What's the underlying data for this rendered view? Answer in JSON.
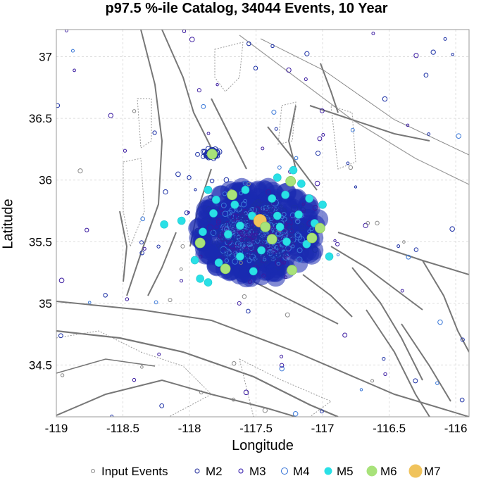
{
  "chart_data": {
    "type": "scatter",
    "title": "p97.5 %-ile Catalog, 34044 Events, 10 Year",
    "xlabel": "Longitude",
    "ylabel": "Latitude",
    "xlim": [
      -119.0,
      -115.9
    ],
    "ylim": [
      34.08,
      37.22
    ],
    "xticks": [
      -119,
      -118.5,
      -118,
      -117.5,
      -117,
      -116.5,
      -116
    ],
    "xtick_labels": [
      "-119",
      "-118.5",
      "-118",
      "-117.5",
      "-117",
      "-116.5",
      "-116"
    ],
    "yticks": [
      34.5,
      35,
      35.5,
      36,
      36.5,
      37
    ],
    "ytick_labels": [
      "34.5",
      "35",
      "35.5",
      "36",
      "36.5",
      "37"
    ],
    "grid": true,
    "legend_position": "bottom",
    "legend": [
      {
        "label": "Input Events",
        "color": "#888888",
        "style": "open-small"
      },
      {
        "label": "M2",
        "color": "#1f2a9a",
        "style": "open"
      },
      {
        "label": "M3",
        "color": "#2a10a8",
        "style": "open"
      },
      {
        "label": "M4",
        "color": "#2f6fd6",
        "style": "open-large"
      },
      {
        "label": "M5",
        "color": "#29e0e6",
        "style": "filled"
      },
      {
        "label": "M6",
        "color": "#a8e27a",
        "style": "filled-large"
      },
      {
        "label": "M7",
        "color": "#f0c35c",
        "style": "filled-xlarge"
      }
    ],
    "cluster": {
      "center_lon": -117.48,
      "center_lat": 35.58,
      "extent_lon": 0.52,
      "extent_lat": 0.4
    },
    "secondary_cluster": {
      "lon": -117.83,
      "lat": 36.21
    },
    "large_events": [
      {
        "mag": "M7",
        "lon": -117.47,
        "lat": 35.67
      },
      {
        "mag": "M6",
        "lon": -117.83,
        "lat": 36.21
      },
      {
        "mag": "M6",
        "lon": -117.68,
        "lat": 35.88
      },
      {
        "mag": "M6",
        "lon": -117.24,
        "lat": 35.99
      },
      {
        "mag": "M6",
        "lon": -117.43,
        "lat": 35.62
      },
      {
        "mag": "M6",
        "lon": -117.38,
        "lat": 35.52
      },
      {
        "mag": "M6",
        "lon": -117.08,
        "lat": 35.53
      },
      {
        "mag": "M6",
        "lon": -117.73,
        "lat": 35.28
      },
      {
        "mag": "M6",
        "lon": -117.92,
        "lat": 35.49
      },
      {
        "mag": "M6",
        "lon": -117.23,
        "lat": 35.27
      },
      {
        "mag": "M6",
        "lon": -117.02,
        "lat": 35.61
      }
    ],
    "m5_events": [
      {
        "lon": -117.86,
        "lat": 35.92
      },
      {
        "lon": -117.8,
        "lat": 35.84
      },
      {
        "lon": -117.66,
        "lat": 35.8
      },
      {
        "lon": -117.58,
        "lat": 35.92
      },
      {
        "lon": -117.34,
        "lat": 36.02
      },
      {
        "lon": -117.16,
        "lat": 35.97
      },
      {
        "lon": -117.28,
        "lat": 35.88
      },
      {
        "lon": -117.53,
        "lat": 35.71
      },
      {
        "lon": -117.62,
        "lat": 35.63
      },
      {
        "lon": -117.34,
        "lat": 35.71
      },
      {
        "lon": -117.18,
        "lat": 35.72
      },
      {
        "lon": -117.06,
        "lat": 35.65
      },
      {
        "lon": -117.12,
        "lat": 35.48
      },
      {
        "lon": -117.27,
        "lat": 35.5
      },
      {
        "lon": -117.46,
        "lat": 35.43
      },
      {
        "lon": -117.62,
        "lat": 35.38
      },
      {
        "lon": -117.78,
        "lat": 35.33
      },
      {
        "lon": -117.86,
        "lat": 35.17
      },
      {
        "lon": -117.9,
        "lat": 35.58
      },
      {
        "lon": -117.96,
        "lat": 35.35
      },
      {
        "lon": -117.52,
        "lat": 35.26
      },
      {
        "lon": -117.32,
        "lat": 35.62
      },
      {
        "lon": -117.0,
        "lat": 35.8
      },
      {
        "lon": -117.22,
        "lat": 36.08
      },
      {
        "lon": -117.82,
        "lat": 35.73
      },
      {
        "lon": -117.71,
        "lat": 35.56
      },
      {
        "lon": -116.95,
        "lat": 35.38
      },
      {
        "lon": -118.19,
        "lat": 35.64
      },
      {
        "lon": -118.06,
        "lat": 35.67
      },
      {
        "lon": -117.92,
        "lat": 35.2
      },
      {
        "lon": -117.38,
        "lat": 35.85
      },
      {
        "lon": -117.1,
        "lat": 35.85
      }
    ]
  }
}
